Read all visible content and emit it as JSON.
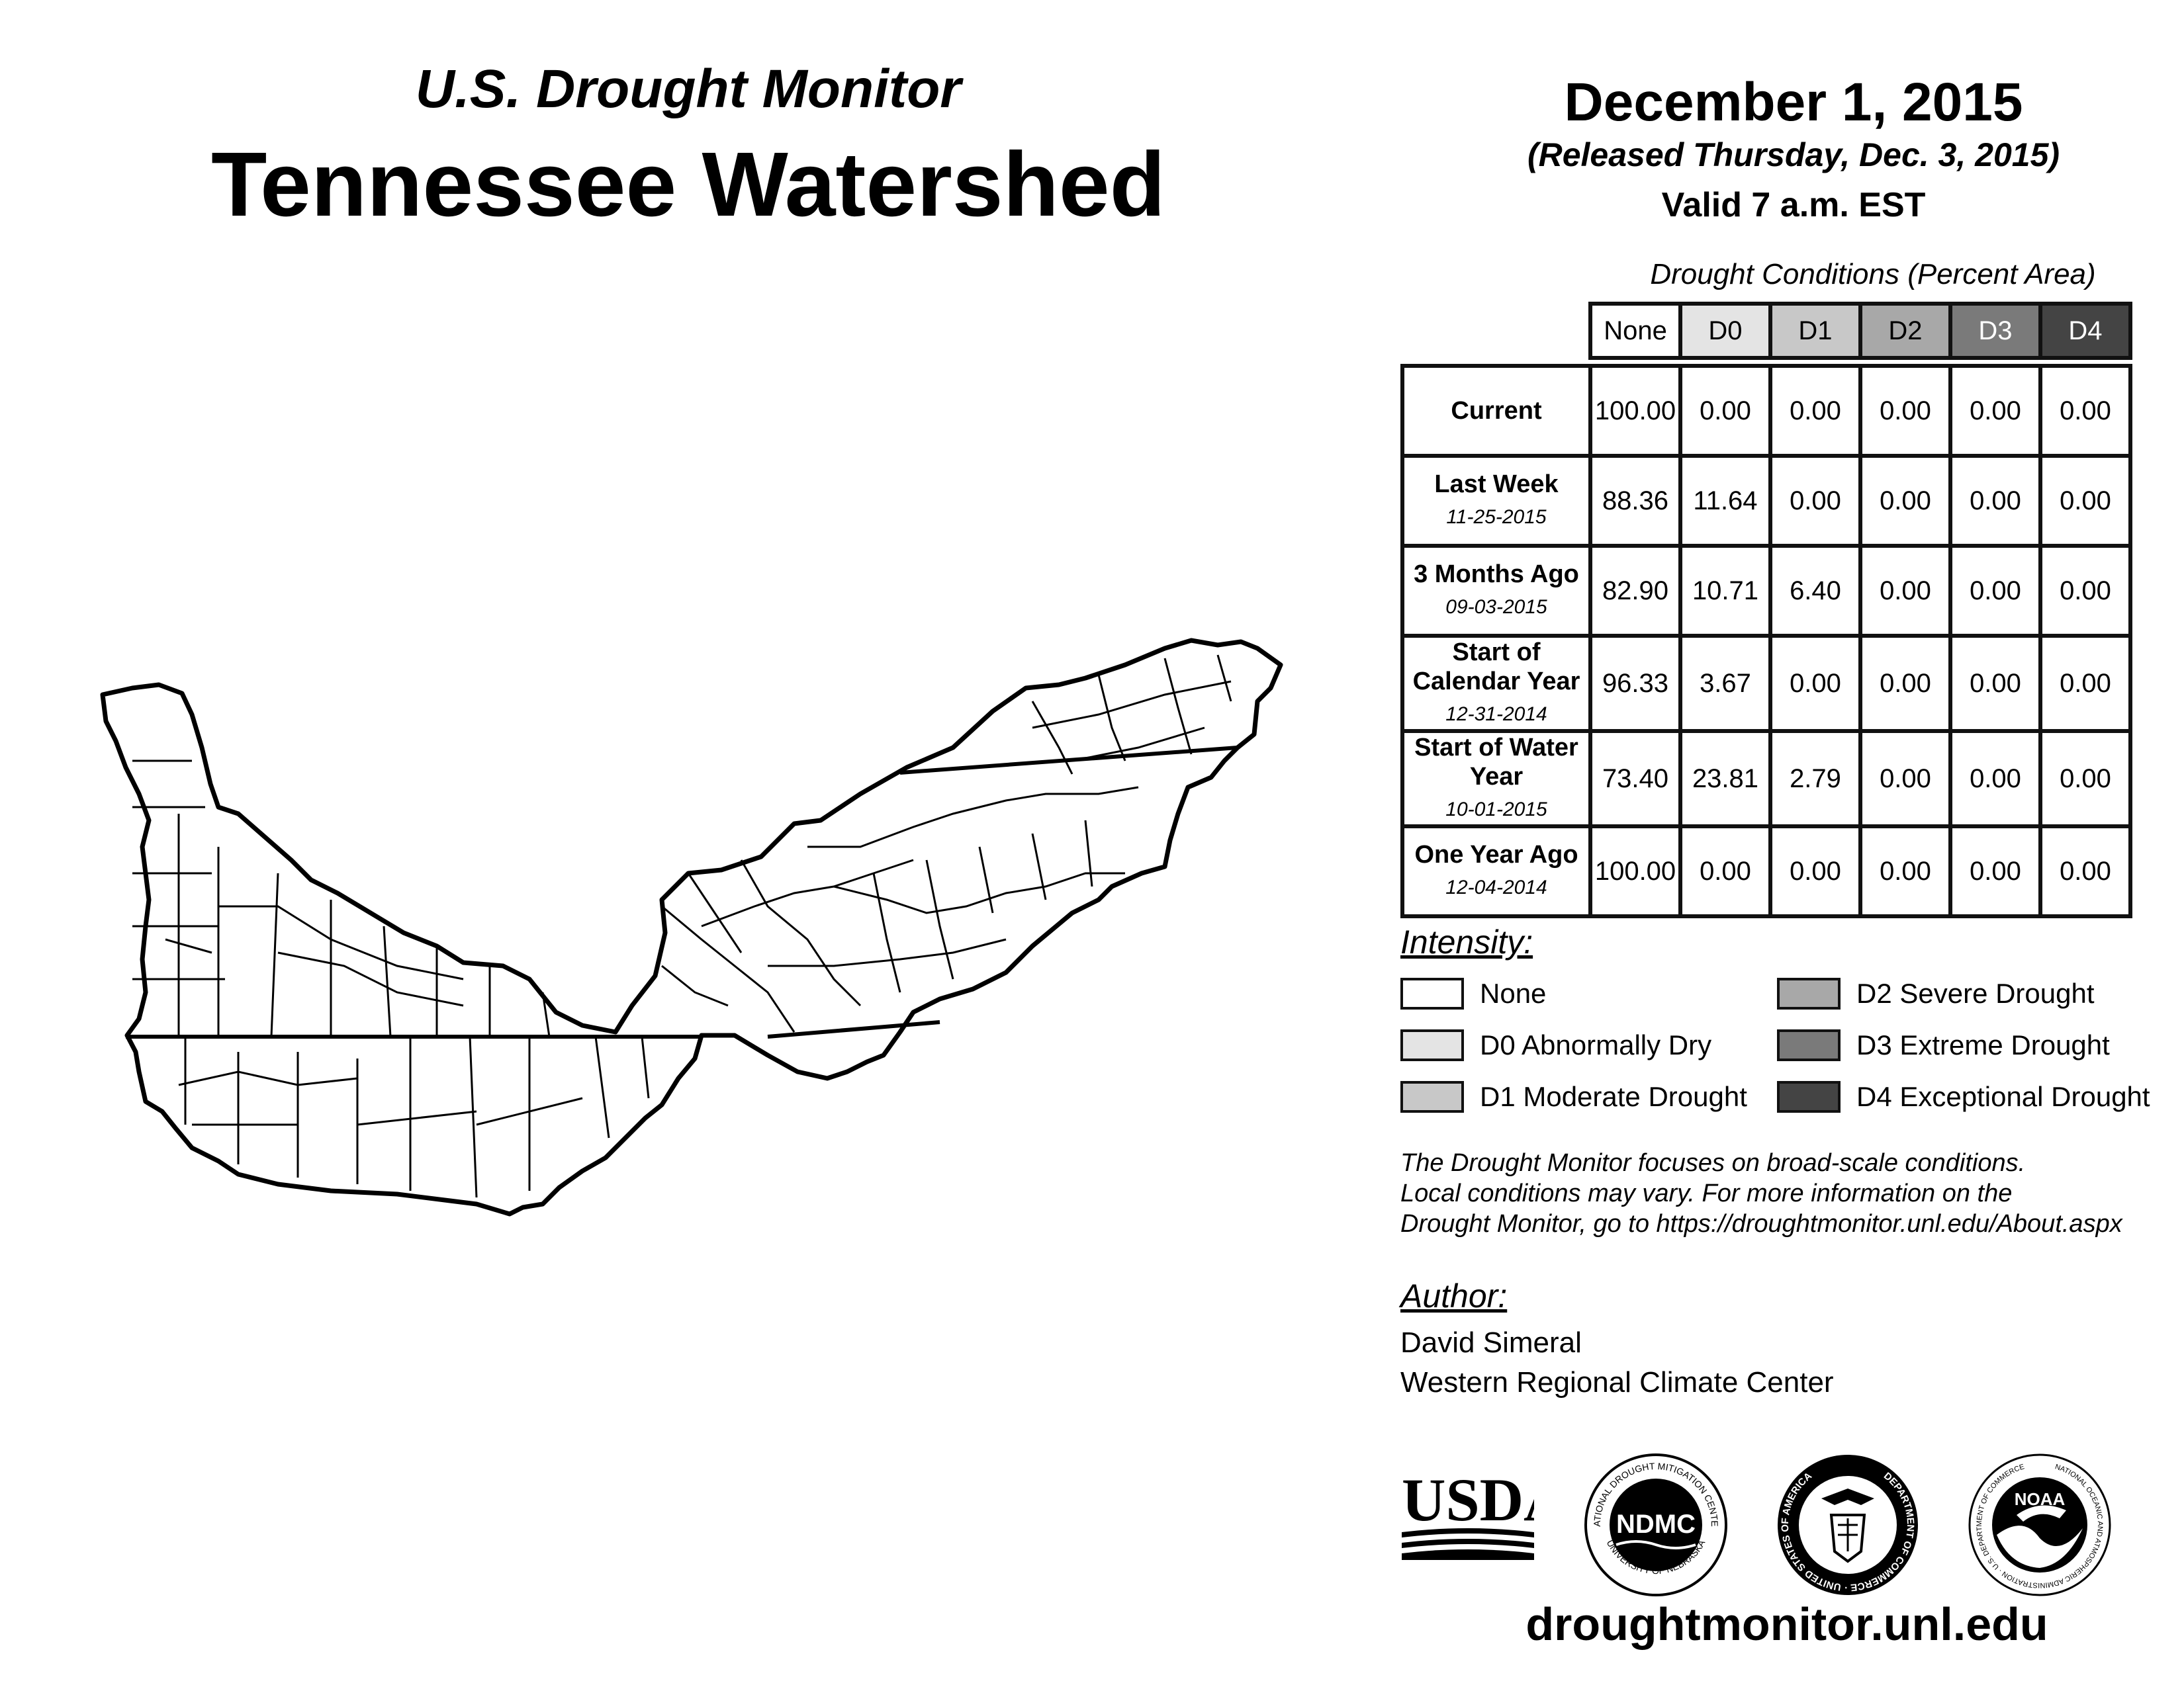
{
  "header": {
    "subtitle": "U.S. Drought Monitor",
    "title": "Tennessee Watershed",
    "date": "December 1, 2015",
    "released": "(Released Thursday, Dec. 3, 2015)",
    "valid": "Valid 7 a.m. EST"
  },
  "conditions": {
    "caption": "Drought Conditions (Percent Area)",
    "columns": [
      "None",
      "D0",
      "D1",
      "D2",
      "D3",
      "D4"
    ],
    "column_colors": [
      "#ffffff",
      "#e4e4e4",
      "#c8c8c8",
      "#a8a8a8",
      "#7a7a7a",
      "#444444"
    ],
    "rows": [
      {
        "label": "Current",
        "sublabel": "",
        "values": [
          "100.00",
          "0.00",
          "0.00",
          "0.00",
          "0.00",
          "0.00"
        ]
      },
      {
        "label": "Last Week",
        "sublabel": "11-25-2015",
        "values": [
          "88.36",
          "11.64",
          "0.00",
          "0.00",
          "0.00",
          "0.00"
        ]
      },
      {
        "label": "3 Months Ago",
        "sublabel": "09-03-2015",
        "values": [
          "82.90",
          "10.71",
          "6.40",
          "0.00",
          "0.00",
          "0.00"
        ]
      },
      {
        "label": "Start of Calendar Year",
        "sublabel": "12-31-2014",
        "values": [
          "96.33",
          "3.67",
          "0.00",
          "0.00",
          "0.00",
          "0.00"
        ]
      },
      {
        "label": "Start of Water Year",
        "sublabel": "10-01-2015",
        "values": [
          "73.40",
          "23.81",
          "2.79",
          "0.00",
          "0.00",
          "0.00"
        ]
      },
      {
        "label": "One Year Ago",
        "sublabel": "12-04-2014",
        "values": [
          "100.00",
          "0.00",
          "0.00",
          "0.00",
          "0.00",
          "0.00"
        ]
      }
    ]
  },
  "legend": {
    "title": "Intensity:",
    "items": [
      {
        "label": "None",
        "color": "#ffffff"
      },
      {
        "label": "D0 Abnormally Dry",
        "color": "#e4e4e4"
      },
      {
        "label": "D1 Moderate Drought",
        "color": "#c8c8c8"
      },
      {
        "label": "D2 Severe Drought",
        "color": "#a8a8a8"
      },
      {
        "label": "D3 Extreme Drought",
        "color": "#7a7a7a"
      },
      {
        "label": "D4 Exceptional Drought",
        "color": "#444444"
      }
    ]
  },
  "note": {
    "line1": "The Drought Monitor focuses on broad-scale conditions.",
    "line2": "Local conditions may vary. For more information on the",
    "line3": "Drought Monitor, go to https://droughtmonitor.unl.edu/About.aspx"
  },
  "author": {
    "title": "Author:",
    "name": "David Simeral",
    "org": "Western Regional Climate Center"
  },
  "logos": {
    "usda": "USDA",
    "ndmc": "NDMC",
    "ndmc_ring_top": "NATIONAL DROUGHT MITIGATION CENTER",
    "ndmc_ring_bottom": "UNIVERSITY OF NEBRASKA",
    "doc_ring": "DEPARTMENT OF COMMERCE · UNITED STATES OF AMERICA",
    "noaa": "NOAA",
    "noaa_ring": "NATIONAL OCEANIC AND ATMOSPHERIC ADMINISTRATION · U.S. DEPARTMENT OF COMMERCE"
  },
  "website": "droughtmonitor.unl.edu"
}
